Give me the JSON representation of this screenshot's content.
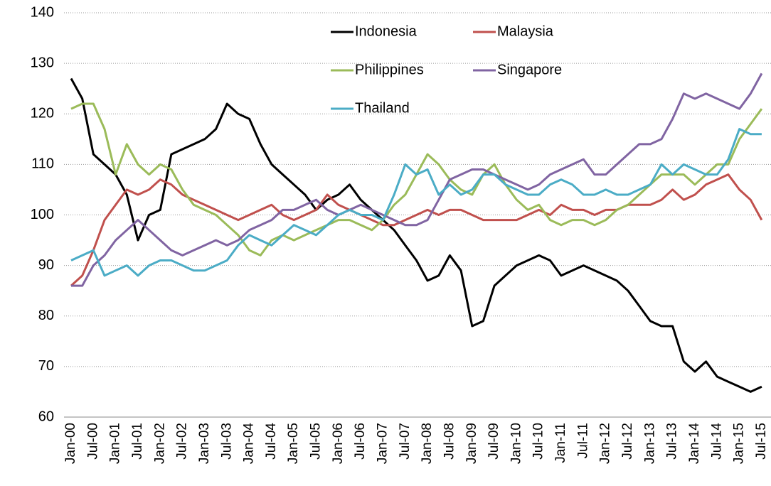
{
  "chart_data": {
    "type": "line",
    "categories": [
      "Jan-00",
      null,
      "Jul-00",
      null,
      "Jan-01",
      null,
      "Jul-01",
      null,
      "Jan-02",
      null,
      "Jul-02",
      null,
      "Jan-03",
      null,
      "Jul-03",
      null,
      "Jan-04",
      null,
      "Jul-04",
      null,
      "Jan-05",
      null,
      "Jul-05",
      null,
      "Jan-06",
      null,
      "Jul-06",
      null,
      "Jan-07",
      null,
      "Jul-07",
      null,
      "Jan-08",
      null,
      "Jul-08",
      null,
      "Jan-09",
      null,
      "Jul-09",
      null,
      "Jan-10",
      null,
      "Jul-10",
      null,
      "Jan-11",
      null,
      "Jul-11",
      null,
      "Jan-12",
      null,
      "Jul-12",
      null,
      "Jan-13",
      null,
      "Jul-13",
      null,
      "Jan-14",
      null,
      "Jul-14",
      null,
      "Jan-15",
      null,
      "Jul-15"
    ],
    "series": [
      {
        "name": "Indonesia",
        "color": "#000000",
        "values": [
          127,
          123,
          112,
          110,
          108,
          104,
          95,
          100,
          101,
          112,
          113,
          114,
          115,
          117,
          122,
          120,
          119,
          114,
          110,
          108,
          106,
          104,
          101,
          103,
          104,
          106,
          103,
          101,
          99,
          97,
          94,
          91,
          87,
          88,
          92,
          89,
          78,
          79,
          86,
          88,
          90,
          91,
          92,
          91,
          88,
          89,
          90,
          89,
          88,
          87,
          85,
          82,
          79,
          78,
          78,
          71,
          69,
          71,
          68,
          67,
          66,
          65,
          66
        ]
      },
      {
        "name": "Malaysia",
        "color": "#c0504d",
        "values": [
          86,
          88,
          93,
          99,
          102,
          105,
          104,
          105,
          107,
          106,
          104,
          103,
          102,
          101,
          100,
          99,
          100,
          101,
          102,
          100,
          99,
          100,
          101,
          104,
          102,
          101,
          100,
          99,
          98,
          98,
          99,
          100,
          101,
          100,
          101,
          101,
          100,
          99,
          99,
          99,
          99,
          100,
          101,
          100,
          102,
          101,
          101,
          100,
          101,
          101,
          102,
          102,
          102,
          103,
          105,
          103,
          104,
          106,
          107,
          108,
          105,
          103,
          99
        ]
      },
      {
        "name": "Philippines",
        "color": "#9bbb59",
        "values": [
          121,
          122,
          122,
          117,
          108,
          114,
          110,
          108,
          110,
          109,
          105,
          102,
          101,
          100,
          98,
          96,
          93,
          92,
          95,
          96,
          95,
          96,
          97,
          98,
          99,
          99,
          98,
          97,
          99,
          102,
          104,
          108,
          112,
          110,
          107,
          105,
          104,
          108,
          110,
          106,
          103,
          101,
          102,
          99,
          98,
          99,
          99,
          98,
          99,
          101,
          102,
          104,
          106,
          108,
          108,
          108,
          106,
          108,
          110,
          110,
          115,
          118,
          121
        ]
      },
      {
        "name": "Singapore",
        "color": "#8064a2",
        "values": [
          86,
          86,
          90,
          92,
          95,
          97,
          99,
          97,
          95,
          93,
          92,
          93,
          94,
          95,
          94,
          95,
          97,
          98,
          99,
          101,
          101,
          102,
          103,
          101,
          100,
          101,
          102,
          101,
          100,
          99,
          98,
          98,
          99,
          103,
          107,
          108,
          109,
          109,
          108,
          107,
          106,
          105,
          106,
          108,
          109,
          110,
          111,
          108,
          108,
          110,
          112,
          114,
          114,
          115,
          119,
          124,
          123,
          124,
          123,
          122,
          121,
          124,
          128
        ]
      },
      {
        "name": "Thailand",
        "color": "#4bacc6",
        "values": [
          91,
          92,
          93,
          88,
          89,
          90,
          88,
          90,
          91,
          91,
          90,
          89,
          89,
          90,
          91,
          94,
          96,
          95,
          94,
          96,
          98,
          97,
          96,
          98,
          100,
          101,
          100,
          100,
          99,
          104,
          110,
          108,
          109,
          104,
          106,
          104,
          105,
          108,
          108,
          106,
          105,
          104,
          104,
          106,
          107,
          106,
          104,
          104,
          105,
          104,
          104,
          105,
          106,
          110,
          108,
          110,
          109,
          108,
          108,
          111,
          117,
          116,
          116
        ]
      }
    ],
    "ylim": [
      60,
      140
    ],
    "yticks": [
      60,
      70,
      80,
      90,
      100,
      110,
      120,
      130,
      140
    ],
    "grid": true
  }
}
